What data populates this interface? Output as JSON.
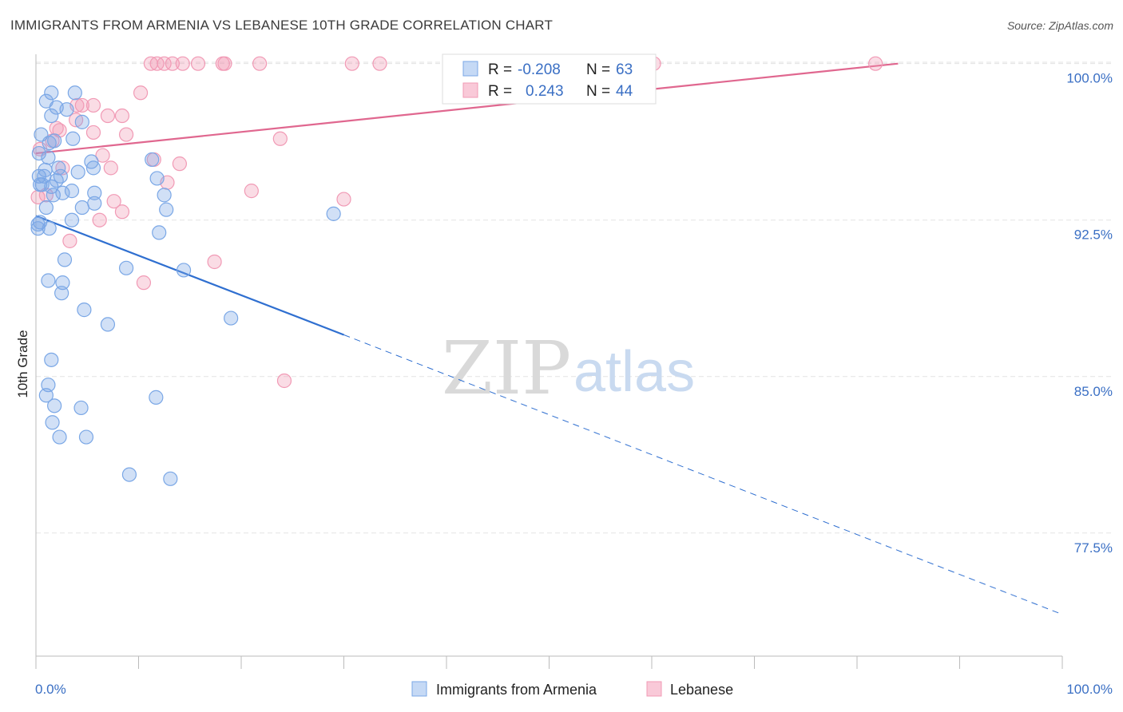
{
  "title": "IMMIGRANTS FROM ARMENIA VS LEBANESE 10TH GRADE CORRELATION CHART",
  "source": "Source: ZipAtlas.com",
  "watermark": {
    "zip": "ZIP",
    "atlas": "atlas"
  },
  "legend_top": [
    {
      "r_label": "R =",
      "r_value": "-0.208",
      "n_label": "N =",
      "n_value": "63",
      "color": "#7aa7e6"
    },
    {
      "r_label": "R =",
      "r_value": "0.243",
      "n_label": "N =",
      "n_value": "44",
      "color": "#f19ab5"
    }
  ],
  "legend_bottom": [
    {
      "label": "Immigrants from Armenia",
      "color": "#7aa7e6"
    },
    {
      "label": "Lebanese",
      "color": "#f19ab5"
    }
  ],
  "chart_data": {
    "type": "scatter",
    "ylabel": "10th Grade",
    "xlim": [
      0,
      100
    ],
    "ylim": [
      71.6,
      100.6
    ],
    "y_ticks": [
      {
        "v": 100,
        "label": "100.0%"
      },
      {
        "v": 92.5,
        "label": "92.5%"
      },
      {
        "v": 85,
        "label": "85.0%"
      },
      {
        "v": 77.5,
        "label": "77.5%"
      }
    ],
    "x_tick_labels": [
      {
        "v": 0,
        "label": "0.0%"
      },
      {
        "v": 100,
        "label": "100.0%"
      }
    ],
    "grid": true,
    "legend": "top-center",
    "series": [
      {
        "name": "Immigrants from Armenia",
        "color": "#7aa7e6",
        "line_color": "#2f6fd0",
        "trend": {
          "x0": 0,
          "y0": 92.7,
          "x1": 30,
          "y1": 87.0,
          "dash_to_x": 100,
          "dash_to_y": 73.6
        },
        "points": [
          [
            1.5,
            98.6
          ],
          [
            3.8,
            98.6
          ],
          [
            1.0,
            98.2
          ],
          [
            2.0,
            97.9
          ],
          [
            3.0,
            97.8
          ],
          [
            1.5,
            97.5
          ],
          [
            4.5,
            97.2
          ],
          [
            0.5,
            96.6
          ],
          [
            1.8,
            96.3
          ],
          [
            3.6,
            96.4
          ],
          [
            0.3,
            95.7
          ],
          [
            1.2,
            95.5
          ],
          [
            5.4,
            95.3
          ],
          [
            11.3,
            95.4
          ],
          [
            5.6,
            95.0
          ],
          [
            2.2,
            95.0
          ],
          [
            4.1,
            94.8
          ],
          [
            0.3,
            94.6
          ],
          [
            0.8,
            94.6
          ],
          [
            2.4,
            94.6
          ],
          [
            11.8,
            94.5
          ],
          [
            0.6,
            94.2
          ],
          [
            1.5,
            94.1
          ],
          [
            3.5,
            93.9
          ],
          [
            5.7,
            93.8
          ],
          [
            12.5,
            93.7
          ],
          [
            5.7,
            93.3
          ],
          [
            4.5,
            93.1
          ],
          [
            1.0,
            93.1
          ],
          [
            12.7,
            93.0
          ],
          [
            29.0,
            92.8
          ],
          [
            0.4,
            92.4
          ],
          [
            3.5,
            92.5
          ],
          [
            1.3,
            92.1
          ],
          [
            0.2,
            92.1
          ],
          [
            12.0,
            91.9
          ],
          [
            2.8,
            90.6
          ],
          [
            8.8,
            90.2
          ],
          [
            14.4,
            90.1
          ],
          [
            1.2,
            89.6
          ],
          [
            2.6,
            89.5
          ],
          [
            2.5,
            89.0
          ],
          [
            4.7,
            88.2
          ],
          [
            7.0,
            87.5
          ],
          [
            19.0,
            87.8
          ],
          [
            1.5,
            85.8
          ],
          [
            1.2,
            84.6
          ],
          [
            1.0,
            84.1
          ],
          [
            11.7,
            84.0
          ],
          [
            1.8,
            83.6
          ],
          [
            4.4,
            83.5
          ],
          [
            1.6,
            82.8
          ],
          [
            2.3,
            82.1
          ],
          [
            4.9,
            82.1
          ],
          [
            9.1,
            80.3
          ],
          [
            13.1,
            80.1
          ],
          [
            0.2,
            92.3
          ],
          [
            1.3,
            96.2
          ],
          [
            0.4,
            94.2
          ],
          [
            2.0,
            94.4
          ],
          [
            1.7,
            93.7
          ],
          [
            0.9,
            94.9
          ],
          [
            2.6,
            93.8
          ]
        ]
      },
      {
        "name": "Lebanese",
        "color": "#f19ab5",
        "line_color": "#e0678f",
        "trend": {
          "x0": 0,
          "y0": 95.7,
          "x1": 84,
          "y1": 100.0
        },
        "points": [
          [
            11.2,
            100.0
          ],
          [
            11.8,
            100.0
          ],
          [
            12.5,
            100.0
          ],
          [
            13.3,
            100.0
          ],
          [
            14.3,
            100.0
          ],
          [
            15.8,
            100.0
          ],
          [
            18.2,
            100.0
          ],
          [
            18.4,
            100.0
          ],
          [
            21.8,
            100.0
          ],
          [
            30.8,
            100.0
          ],
          [
            33.5,
            100.0
          ],
          [
            60.2,
            100.0
          ],
          [
            81.8,
            100.0
          ],
          [
            10.2,
            98.6
          ],
          [
            4.0,
            98.0
          ],
          [
            4.5,
            98.0
          ],
          [
            5.6,
            98.0
          ],
          [
            7.0,
            97.5
          ],
          [
            8.4,
            97.5
          ],
          [
            3.9,
            97.3
          ],
          [
            2.0,
            96.9
          ],
          [
            2.3,
            96.8
          ],
          [
            5.6,
            96.7
          ],
          [
            8.8,
            96.6
          ],
          [
            1.6,
            96.3
          ],
          [
            23.8,
            96.4
          ],
          [
            0.4,
            95.9
          ],
          [
            6.5,
            95.6
          ],
          [
            11.5,
            95.4
          ],
          [
            14.0,
            95.2
          ],
          [
            7.3,
            95.0
          ],
          [
            2.6,
            95.0
          ],
          [
            12.8,
            94.3
          ],
          [
            21.0,
            93.9
          ],
          [
            30.0,
            93.5
          ],
          [
            7.6,
            93.4
          ],
          [
            8.4,
            92.9
          ],
          [
            6.2,
            92.5
          ],
          [
            3.3,
            91.5
          ],
          [
            17.4,
            90.5
          ],
          [
            10.5,
            89.5
          ],
          [
            24.2,
            84.8
          ],
          [
            0.2,
            93.6
          ],
          [
            1.0,
            93.7
          ]
        ]
      }
    ]
  }
}
